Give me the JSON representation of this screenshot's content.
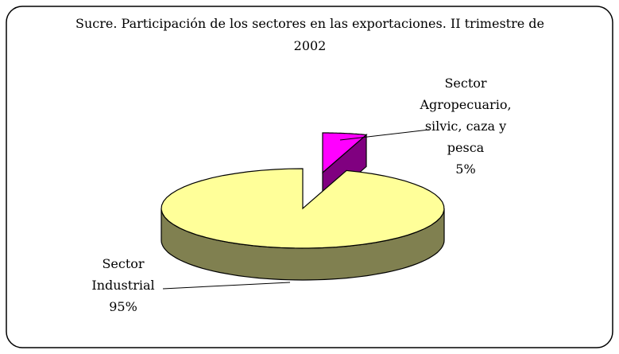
{
  "chart_data": {
    "type": "pie",
    "title": "Sucre. Participación de los sectores en las exportaciones. II trimestre de 2002",
    "categories": [
      "Sector Agropecuario, silvic, caza y pesca",
      "Sector Industrial"
    ],
    "values": [
      5,
      95
    ],
    "value_labels": [
      "5%",
      "95%"
    ],
    "colors": [
      "#ff00ff",
      "#ffff99"
    ],
    "side_colors": [
      "#800080",
      "#808050"
    ]
  }
}
